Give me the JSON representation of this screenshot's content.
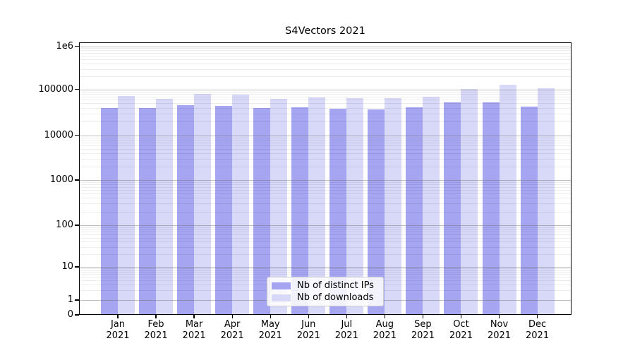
{
  "chart_data": {
    "type": "bar",
    "title": "S4Vectors 2021",
    "y_scale": "log-with-zero-baseline",
    "grid": true,
    "legend_position": "lower center",
    "months": [
      "Jan",
      "Feb",
      "Mar",
      "Apr",
      "May",
      "Jun",
      "Jul",
      "Aug",
      "Sep",
      "Oct",
      "Nov",
      "Dec"
    ],
    "year": "2021",
    "series": [
      {
        "name": "Nb of distinct IPs",
        "color": "#a5a5f2",
        "values": [
          40000,
          39000,
          46000,
          43500,
          40000,
          41500,
          38000,
          36500,
          41000,
          51500,
          52500,
          43000
        ]
      },
      {
        "name": "Nb of downloads",
        "color": "#d8d8f8",
        "values": [
          71500,
          63000,
          79000,
          78000,
          63500,
          68000,
          64500,
          64000,
          70500,
          104000,
          127000,
          105000
        ]
      }
    ],
    "y_axis": {
      "ticks": [
        {
          "label": "1e6",
          "value": 1000000
        },
        {
          "label": "100000",
          "value": 100000
        },
        {
          "label": "10000",
          "value": 10000
        },
        {
          "label": "1000",
          "value": 1000
        },
        {
          "label": "100",
          "value": 100
        },
        {
          "label": "10",
          "value": 10
        },
        {
          "label": "1",
          "value": 1
        },
        {
          "label": "0",
          "value": 0
        }
      ],
      "ylim": [
        0,
        1000000
      ]
    }
  }
}
